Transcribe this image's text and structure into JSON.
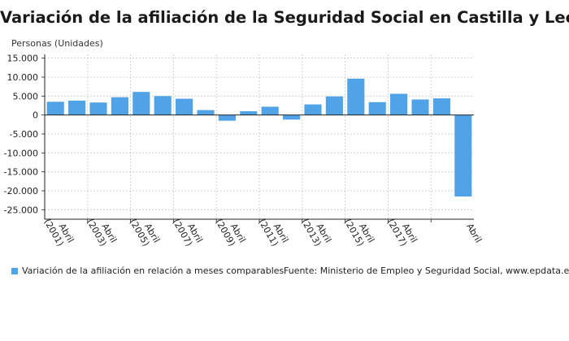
{
  "title": "Variación de la afiliación de la Seguridad Social en Castilla y León",
  "legend_label": "Variación de la afiliación en relación a meses comparables",
  "source": "Fuente: Ministerio de Empleo y Seguridad Social, www.epdata.es",
  "colors": {
    "bar": "#4fa3e6",
    "grid": "#c9c9c9",
    "axis": "#222222"
  },
  "chart_data": {
    "type": "bar",
    "ylabel": "Personas (Unidades)",
    "ylim": [
      -27500,
      16000
    ],
    "yticks": [
      15000,
      10000,
      5000,
      0,
      -5000,
      -10000,
      -15000,
      -20000,
      -25000
    ],
    "ytick_labels": [
      "15.000",
      "10.000",
      "5.000",
      "0",
      "-5.000",
      "-10.000",
      "-15.000",
      "-20.000",
      "-25.000"
    ],
    "grid": true,
    "legend_position": "bottom",
    "series": [
      {
        "name": "Variación de la afiliación en relación a meses comparables",
        "values": [
          3500,
          3800,
          3300,
          4700,
          6100,
          5000,
          4300,
          1300,
          -1500,
          1000,
          2200,
          -1200,
          2800,
          4900,
          9600,
          3400,
          5600,
          4100,
          4400,
          -21500
        ]
      }
    ],
    "xtick_labels": [
      {
        "index": 0,
        "line1": "Abril",
        "line2": "(2001)"
      },
      {
        "index": 2,
        "line1": "Abril",
        "line2": "(2003)"
      },
      {
        "index": 4,
        "line1": "Abril",
        "line2": "(2005)"
      },
      {
        "index": 6,
        "line1": "Abril",
        "line2": "(2007)"
      },
      {
        "index": 8,
        "line1": "Abril",
        "line2": "(2009)"
      },
      {
        "index": 10,
        "line1": "Abril",
        "line2": "(2011)"
      },
      {
        "index": 12,
        "line1": "Abril",
        "line2": "(2013)"
      },
      {
        "index": 14,
        "line1": "Abril",
        "line2": "(2015)"
      },
      {
        "index": 16,
        "line1": "Abril",
        "line2": "(2017)"
      },
      {
        "index": 19,
        "line1": "Abril",
        "line2": ""
      }
    ]
  }
}
